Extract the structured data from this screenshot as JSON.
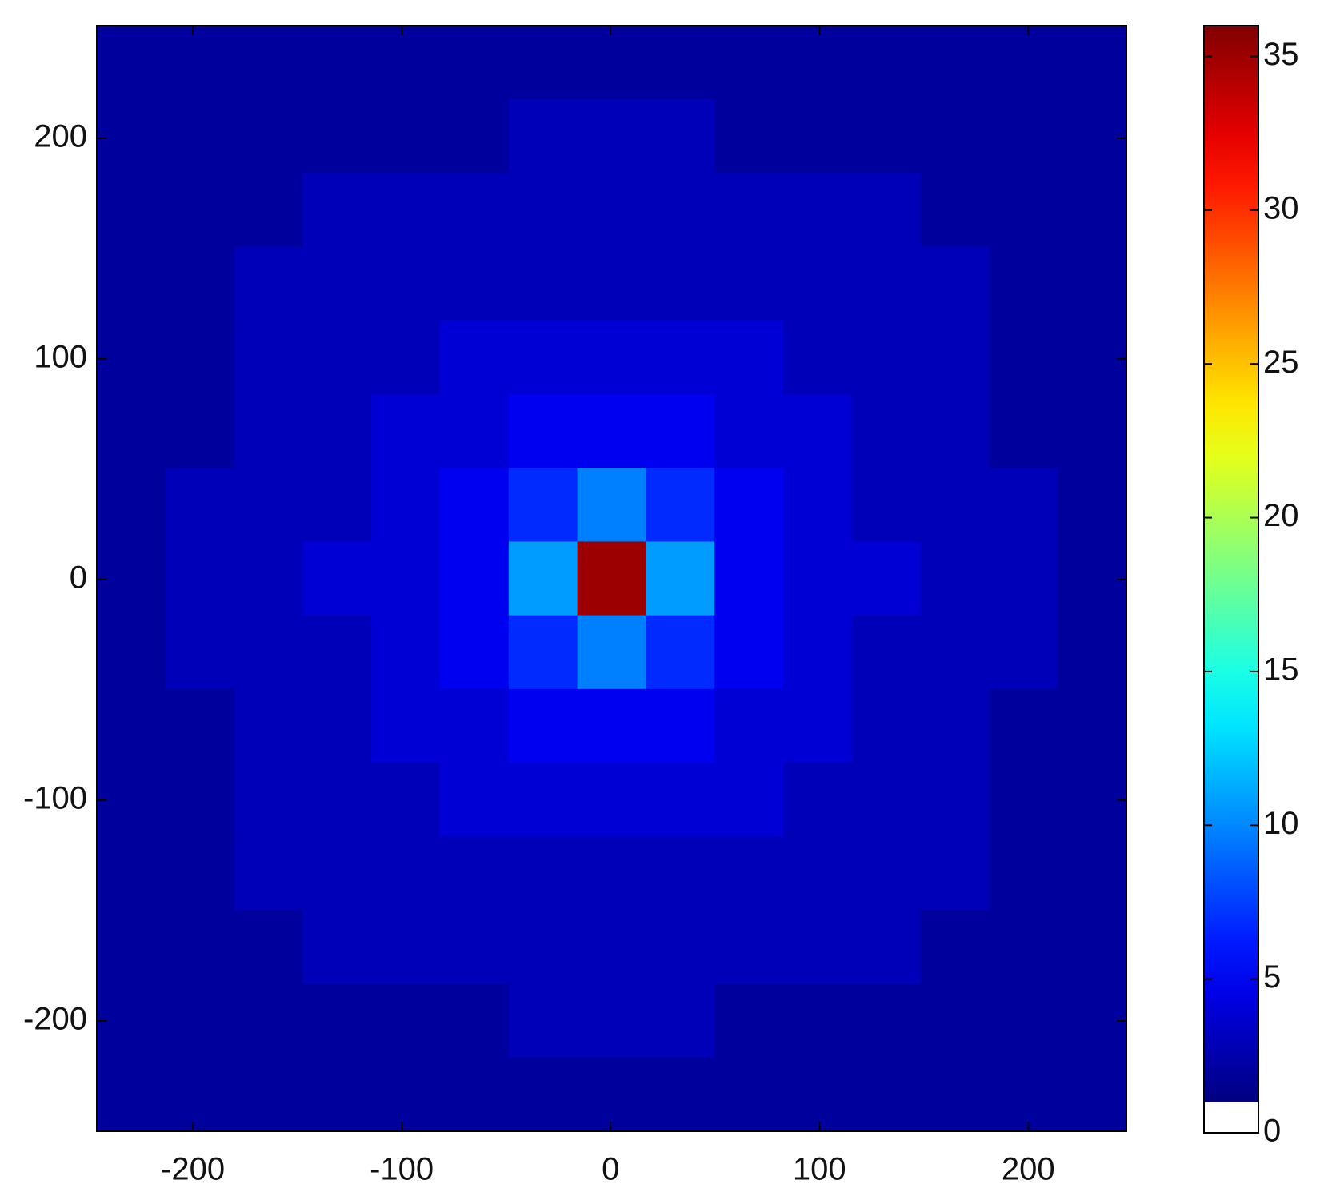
{
  "chart_data": {
    "type": "heatmap",
    "colormap": "jet",
    "xlim": [
      -246,
      247
    ],
    "ylim": [
      -250,
      251
    ],
    "xticks": [
      -200,
      -100,
      0,
      100,
      200
    ],
    "yticks": [
      -200,
      -100,
      0,
      100,
      200
    ],
    "clim": [
      0,
      36
    ],
    "cticks": [
      0,
      5,
      10,
      15,
      20,
      25,
      30,
      35
    ],
    "z": [
      [
        1,
        1,
        1,
        1,
        1,
        1,
        1,
        1,
        1,
        1,
        1,
        1,
        1,
        1,
        1
      ],
      [
        1,
        1,
        1,
        1,
        1,
        1,
        2,
        2,
        2,
        1,
        1,
        1,
        1,
        1,
        1
      ],
      [
        1,
        1,
        1,
        2,
        2,
        2,
        2,
        2,
        2,
        2,
        2,
        2,
        1,
        1,
        1
      ],
      [
        1,
        1,
        2,
        2,
        2,
        2,
        2,
        2,
        2,
        2,
        2,
        2,
        2,
        1,
        1
      ],
      [
        1,
        1,
        2,
        2,
        2,
        3,
        3,
        3,
        3,
        3,
        2,
        2,
        2,
        1,
        1
      ],
      [
        1,
        1,
        2,
        2,
        3,
        3,
        4,
        4,
        4,
        3,
        3,
        2,
        2,
        1,
        1
      ],
      [
        1,
        2,
        2,
        2,
        3,
        4,
        6,
        9,
        6,
        4,
        3,
        2,
        2,
        2,
        1
      ],
      [
        1,
        2,
        2,
        3,
        3,
        4,
        10,
        35,
        10,
        4,
        3,
        3,
        2,
        2,
        1
      ],
      [
        1,
        2,
        2,
        2,
        3,
        4,
        6,
        9,
        6,
        4,
        3,
        2,
        2,
        2,
        1
      ],
      [
        1,
        1,
        2,
        2,
        3,
        3,
        4,
        4,
        4,
        3,
        3,
        2,
        2,
        1,
        1
      ],
      [
        1,
        1,
        2,
        2,
        2,
        3,
        3,
        3,
        3,
        3,
        2,
        2,
        2,
        1,
        1
      ],
      [
        1,
        1,
        2,
        2,
        2,
        2,
        2,
        2,
        2,
        2,
        2,
        2,
        2,
        1,
        1
      ],
      [
        1,
        1,
        1,
        2,
        2,
        2,
        2,
        2,
        2,
        2,
        2,
        2,
        1,
        1,
        1
      ],
      [
        1,
        1,
        1,
        1,
        1,
        1,
        2,
        2,
        2,
        1,
        1,
        1,
        1,
        1,
        1
      ],
      [
        1,
        1,
        1,
        1,
        1,
        1,
        1,
        1,
        1,
        1,
        1,
        1,
        1,
        1,
        1
      ]
    ]
  }
}
